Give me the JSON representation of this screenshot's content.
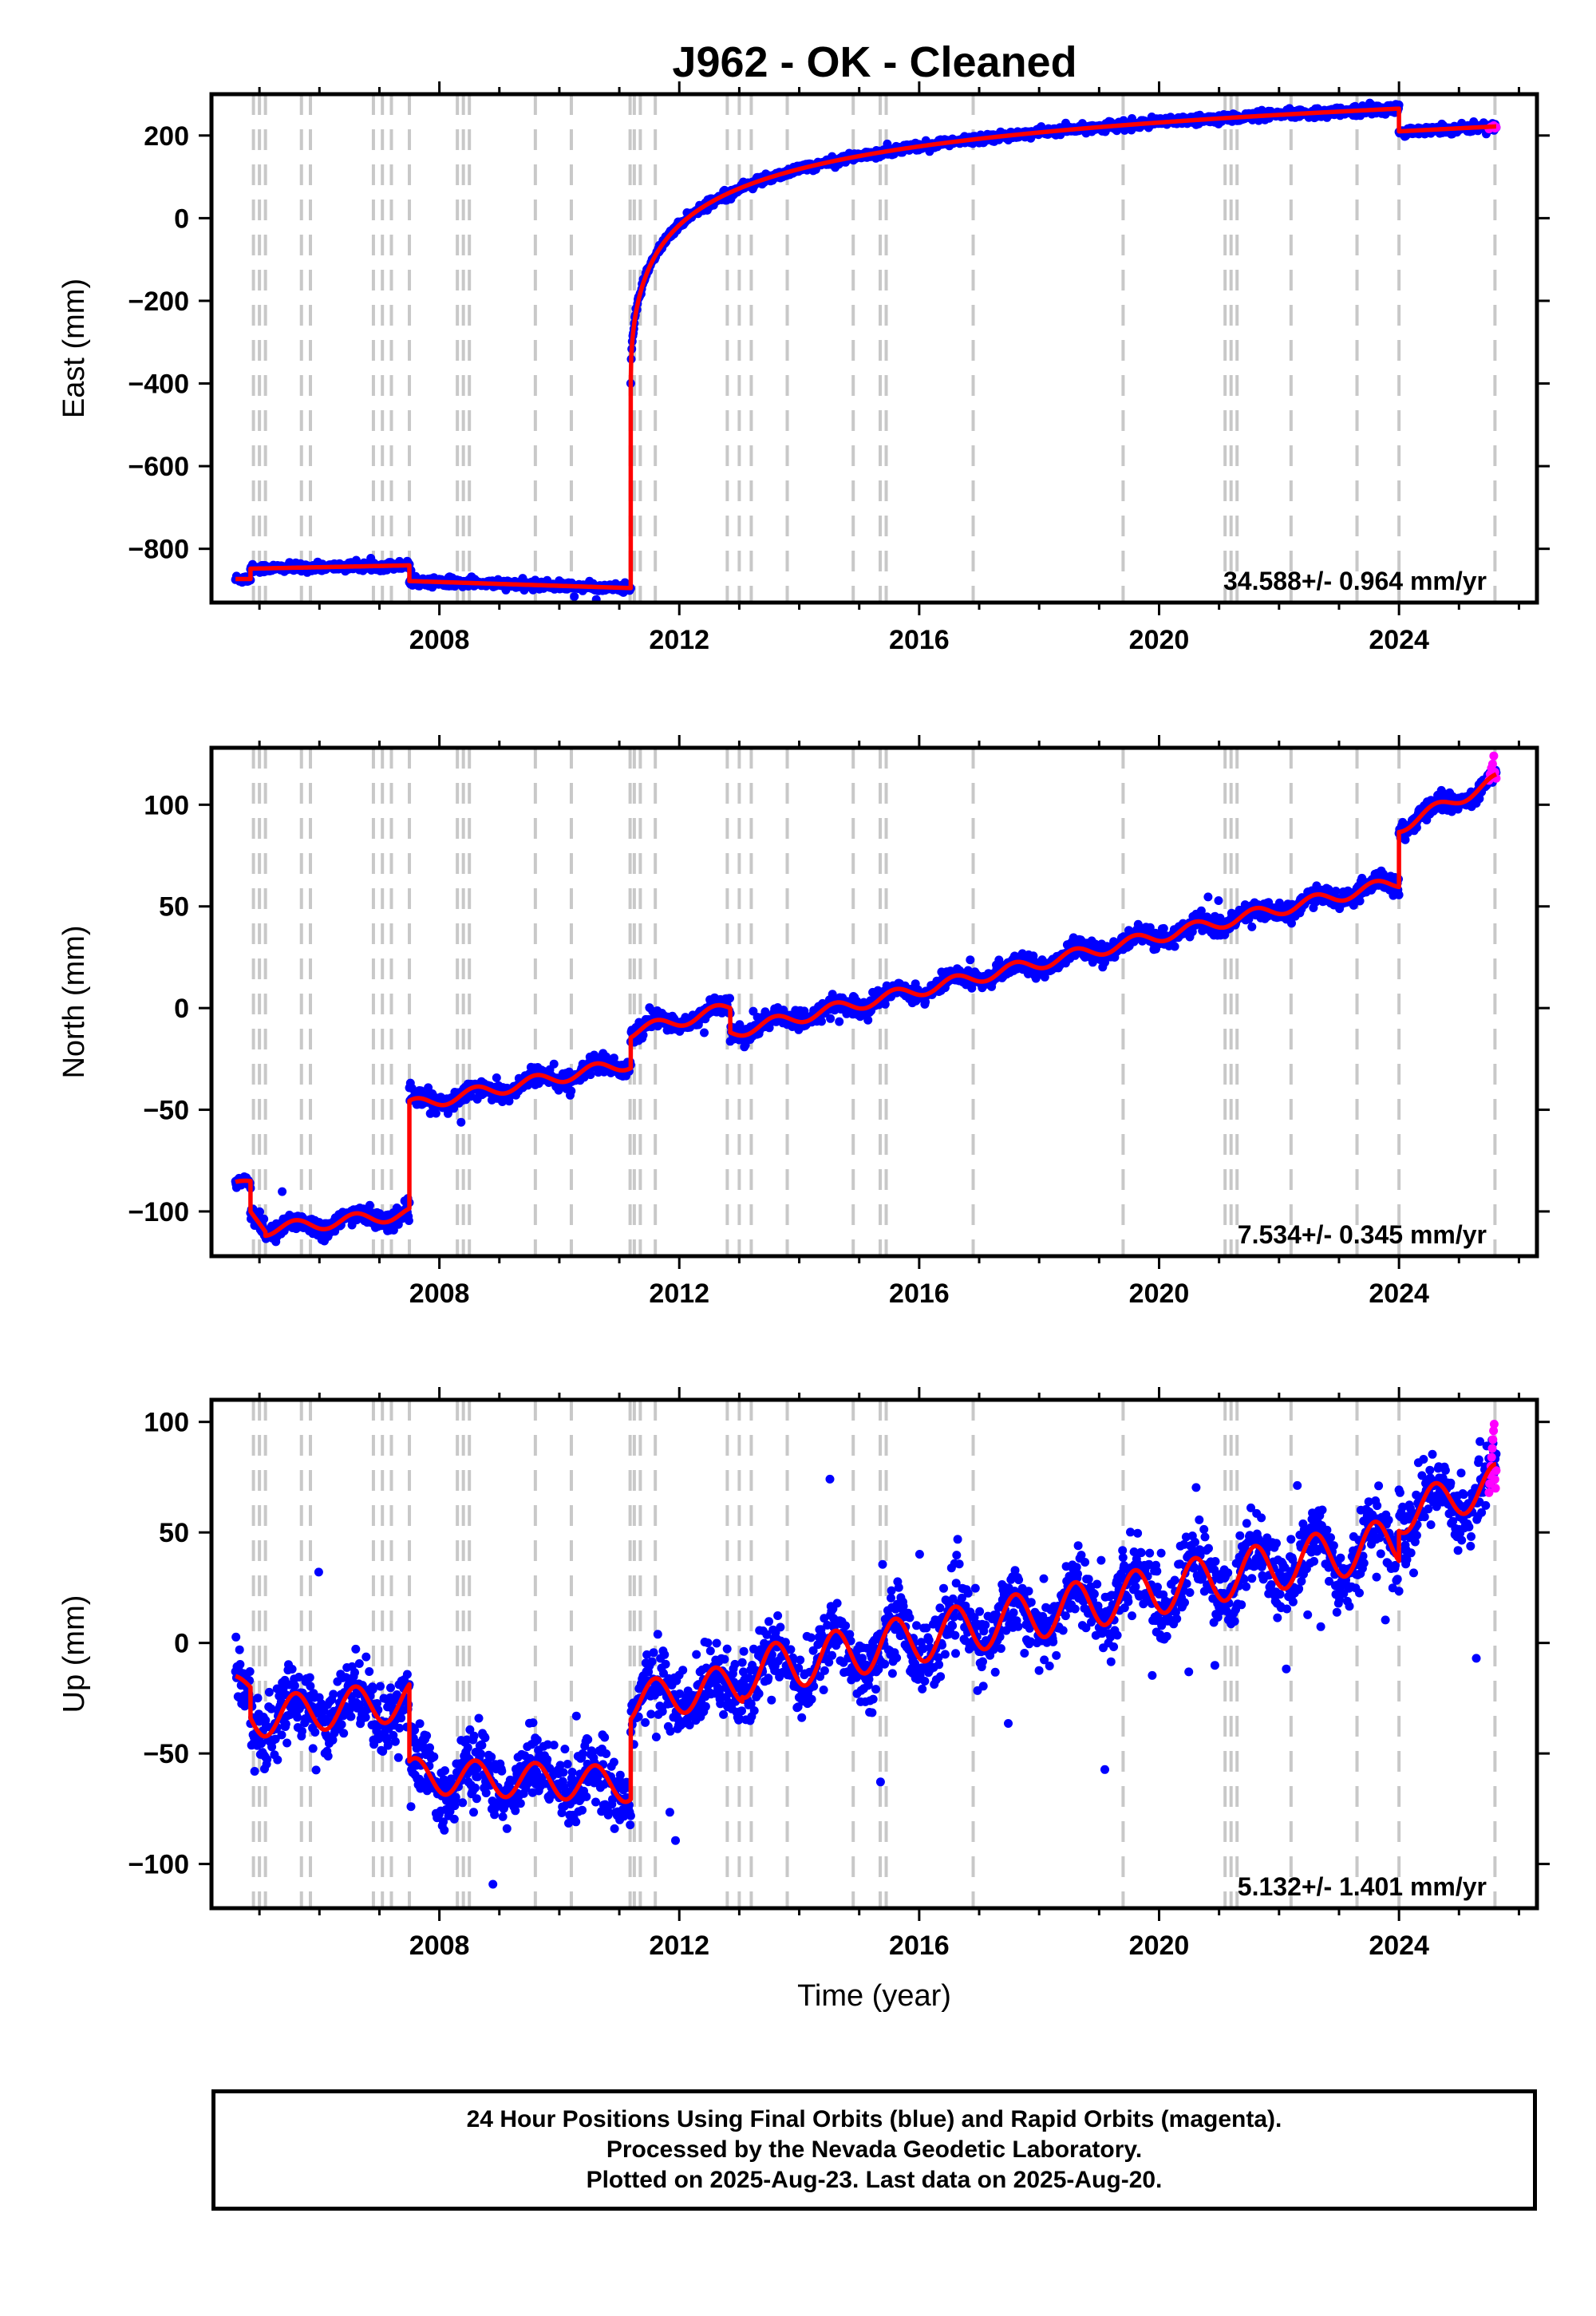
{
  "title": "J962  - OK - Cleaned",
  "footer": {
    "lines": [
      "24 Hour Positions Using Final Orbits (blue) and Rapid Orbits (magenta).",
      "Processed by the Nevada Geodetic Laboratory.",
      "Plotted on 2025-Aug-23. Last data on 2025-Aug-20."
    ]
  },
  "colors": {
    "final": "#0000ff",
    "rapid": "#ff00ff",
    "model": "#ff0000",
    "events": "#c8c8c8"
  },
  "chart_data": [
    {
      "type": "scatter",
      "name": "east",
      "ylabel": "East (mm)",
      "xlabel": "",
      "xlim": [
        2004.2,
        2026.3
      ],
      "ylim": [
        -930,
        300
      ],
      "xticks": [
        2008,
        2012,
        2016,
        2020,
        2024
      ],
      "yticks": [
        200,
        0,
        -200,
        -400,
        -600,
        -800
      ],
      "rate": "34.588+/- 0.964 mm/yr",
      "events": [
        2004.9,
        2005.0,
        2005.1,
        2005.7,
        2005.85,
        2006.9,
        2007.05,
        2007.2,
        2007.5,
        2008.3,
        2008.4,
        2008.5,
        2009.6,
        2010.2,
        2011.18,
        2011.25,
        2011.35,
        2011.6,
        2012.8,
        2013.0,
        2013.2,
        2013.8,
        2014.9,
        2015.35,
        2015.45,
        2016.9,
        2019.4,
        2021.1,
        2021.2,
        2021.3,
        2022.2,
        2023.3,
        2024.0,
        2025.6
      ],
      "segments": [
        {
          "t0": 2004.6,
          "t1": 2004.85,
          "v0": -873,
          "v1": -873,
          "rel": 0,
          "amp": 0
        },
        {
          "t0": 2004.85,
          "t1": 2007.5,
          "v0": -848,
          "v1": -840,
          "rel": 0,
          "amp": 0
        },
        {
          "t0": 2007.5,
          "t1": 2011.19,
          "v0": -878,
          "v1": -895,
          "rel": 0,
          "amp": 0
        },
        {
          "t0": 2011.19,
          "t1": 2024.0,
          "v0": -400,
          "v1": 265,
          "rel": 5.0,
          "amp": 0,
          "logA": 88,
          "logTau": 0.5,
          "logPow": 0.45
        },
        {
          "t0": 2024.0,
          "t1": 2025.62,
          "v0": 210,
          "v1": 222,
          "rel": 0,
          "amp": 0
        }
      ],
      "noise": 5,
      "outlier_rate": 0.002,
      "outlier_scale": 15,
      "rapid": {
        "t0": 2025.5,
        "t1": 2025.62,
        "values": [
          216,
          219,
          221,
          222,
          224,
          218,
          220
        ]
      }
    },
    {
      "type": "scatter",
      "name": "north",
      "ylabel": "North (mm)",
      "xlabel": "",
      "xlim": [
        2004.2,
        2026.3
      ],
      "ylim": [
        -122,
        128
      ],
      "xticks": [
        2008,
        2012,
        2016,
        2020,
        2024
      ],
      "yticks": [
        100,
        50,
        0,
        -50,
        -100
      ],
      "rate": "7.534+/- 0.345 mm/yr",
      "events": [
        2004.9,
        2005.0,
        2005.1,
        2005.7,
        2005.85,
        2006.9,
        2007.05,
        2007.2,
        2007.5,
        2008.3,
        2008.4,
        2008.5,
        2009.6,
        2010.2,
        2011.18,
        2011.25,
        2011.35,
        2011.6,
        2012.8,
        2013.0,
        2013.2,
        2013.8,
        2014.9,
        2015.35,
        2015.45,
        2016.9,
        2019.4,
        2021.1,
        2021.2,
        2021.3,
        2022.2,
        2023.3,
        2024.0,
        2025.6
      ],
      "segments": [
        {
          "t0": 2004.6,
          "t1": 2004.85,
          "v0": -87,
          "v1": -85,
          "rel": 0,
          "amp": 1.5
        },
        {
          "t0": 2004.85,
          "t1": 2005.1,
          "v0": -100,
          "v1": -110,
          "rel": 0,
          "amp": 0
        },
        {
          "t0": 2005.1,
          "t1": 2007.5,
          "v0": -109,
          "v1": -101,
          "rel": 0,
          "amp": 3
        },
        {
          "t0": 2007.5,
          "t1": 2011.19,
          "v0": -48,
          "v1": -27,
          "rel": 0,
          "amp": 3
        },
        {
          "t0": 2011.19,
          "t1": 2012.85,
          "v0": -12,
          "v1": 0,
          "rel": 0,
          "amp": 3
        },
        {
          "t0": 2012.85,
          "t1": 2024.0,
          "v0": -12,
          "v1": 62,
          "rel": 0,
          "amp": 3
        },
        {
          "t0": 2024.0,
          "t1": 2025.62,
          "v0": 89,
          "v1": 112,
          "rel": 0,
          "amp": 3
        }
      ],
      "noise": 2.2,
      "outlier_rate": 0.004,
      "outlier_scale": 6,
      "rapid": {
        "t0": 2025.5,
        "t1": 2025.62,
        "values": [
          112,
          115,
          118,
          120,
          124,
          116,
          113
        ]
      }
    },
    {
      "type": "scatter",
      "name": "up",
      "ylabel": "Up (mm)",
      "xlabel": "Time (year)",
      "xlim": [
        2004.2,
        2026.3
      ],
      "ylim": [
        -120,
        110
      ],
      "xticks": [
        2008,
        2012,
        2016,
        2020,
        2024
      ],
      "yticks": [
        100,
        50,
        0,
        -50,
        -100
      ],
      "rate": "5.132+/- 1.401 mm/yr",
      "events": [
        2004.9,
        2005.0,
        2005.1,
        2005.7,
        2005.85,
        2006.9,
        2007.05,
        2007.2,
        2007.5,
        2008.3,
        2008.4,
        2008.5,
        2009.6,
        2010.2,
        2011.18,
        2011.25,
        2011.35,
        2011.6,
        2012.8,
        2013.0,
        2013.2,
        2013.8,
        2014.9,
        2015.35,
        2015.45,
        2016.9,
        2019.4,
        2021.1,
        2021.2,
        2021.3,
        2022.2,
        2023.3,
        2024.0,
        2025.6
      ],
      "segments": [
        {
          "t0": 2004.6,
          "t1": 2004.85,
          "v0": -18,
          "v1": -20,
          "rel": 0,
          "amp": 3
        },
        {
          "t0": 2004.85,
          "t1": 2007.5,
          "v0": -34,
          "v1": -26,
          "rel": 0,
          "amp": 9
        },
        {
          "t0": 2007.5,
          "t1": 2011.19,
          "v0": -60,
          "v1": -64,
          "rel": 0,
          "amp": 8
        },
        {
          "t0": 2011.19,
          "t1": 2013.05,
          "v0": -27,
          "v1": -18,
          "rel": 0,
          "amp": 9
        },
        {
          "t0": 2013.05,
          "t1": 2024.0,
          "v0": -14,
          "v1": 46,
          "rel": 0,
          "amp": 11
        },
        {
          "t0": 2024.0,
          "t1": 2025.62,
          "v0": 58,
          "v1": 72,
          "rel": 0,
          "amp": 9
        }
      ],
      "noise": 8,
      "outlier_rate": 0.01,
      "outlier_scale": 25,
      "rapid": {
        "t0": 2025.5,
        "t1": 2025.62,
        "values": [
          68,
          72,
          76,
          80,
          84,
          88,
          92,
          96,
          99,
          74,
          70,
          78
        ]
      }
    }
  ]
}
